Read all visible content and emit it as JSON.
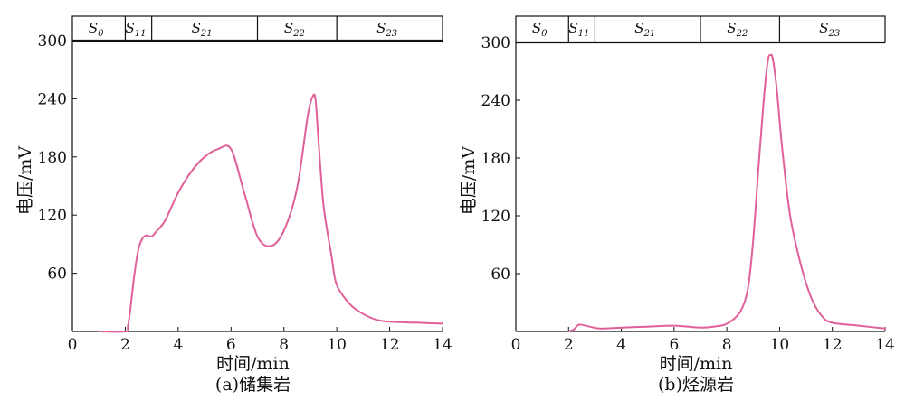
{
  "colors": {
    "curve": "#e0609a",
    "axis": "#111111",
    "background": "#ffffff"
  },
  "chart_data": [
    {
      "type": "line",
      "caption": "(a)储集岩",
      "xlabel": "时间/min",
      "ylabel": "电压/mV",
      "xlim": [
        0,
        14
      ],
      "ylim": [
        0,
        300
      ],
      "xticks": [
        0,
        2,
        4,
        6,
        8,
        10,
        12,
        14
      ],
      "yticks": [
        60,
        120,
        180,
        240,
        300
      ],
      "grid": false,
      "zones": [
        {
          "base": "S",
          "sub": "0",
          "start": 0,
          "end": 2
        },
        {
          "base": "S",
          "sub": "11",
          "start": 2,
          "end": 3
        },
        {
          "base": "S",
          "sub": "21",
          "start": 3,
          "end": 7
        },
        {
          "base": "S",
          "sub": "22",
          "start": 7,
          "end": 10
        },
        {
          "base": "S",
          "sub": "23",
          "start": 10,
          "end": 14
        }
      ],
      "series": [
        {
          "x": [
            1.0,
            2.0,
            2.1,
            2.2,
            2.35,
            2.5,
            2.65,
            2.8,
            3.0,
            3.2,
            3.5,
            4.0,
            4.5,
            5.0,
            5.5,
            6.0,
            6.5,
            7.0,
            7.5,
            8.0,
            8.5,
            8.9,
            9.1,
            9.2,
            9.3,
            9.5,
            9.8,
            10.0,
            10.5,
            11.0,
            11.5,
            12.0,
            13.0,
            14.0
          ],
          "y": [
            0,
            0,
            5,
            25,
            60,
            85,
            96,
            99,
            98,
            104,
            114,
            143,
            165,
            180,
            188,
            188,
            143,
            98,
            88,
            104,
            148,
            222,
            243,
            238,
            200,
            130,
            78,
            48,
            28,
            18,
            12,
            10,
            9,
            8
          ]
        }
      ]
    },
    {
      "type": "line",
      "caption": "(b)烃源岩",
      "xlabel": "时间/min",
      "ylabel": "电压/mV",
      "xlim": [
        0,
        14
      ],
      "ylim": [
        0,
        300
      ],
      "xticks": [
        0,
        2,
        4,
        6,
        8,
        10,
        12,
        14
      ],
      "yticks": [
        60,
        120,
        180,
        240,
        300
      ],
      "grid": false,
      "zones": [
        {
          "base": "S",
          "sub": "0",
          "start": 0,
          "end": 2
        },
        {
          "base": "S",
          "sub": "11",
          "start": 2,
          "end": 3
        },
        {
          "base": "S",
          "sub": "21",
          "start": 3,
          "end": 7
        },
        {
          "base": "S",
          "sub": "22",
          "start": 7,
          "end": 10
        },
        {
          "base": "S",
          "sub": "23",
          "start": 10,
          "end": 14
        }
      ],
      "series": [
        {
          "x": [
            2.0,
            2.2,
            2.4,
            2.8,
            3.2,
            4.0,
            5.0,
            6.0,
            7.0,
            7.5,
            8.0,
            8.5,
            8.8,
            9.0,
            9.2,
            9.4,
            9.55,
            9.65,
            9.75,
            9.9,
            10.1,
            10.4,
            10.8,
            11.2,
            11.6,
            12.0,
            13.0,
            14.0
          ],
          "y": [
            0,
            2,
            7,
            5,
            3,
            4,
            5,
            6,
            4,
            5,
            8,
            20,
            45,
            95,
            170,
            240,
            280,
            287,
            282,
            250,
            190,
            120,
            70,
            35,
            16,
            9,
            6,
            3
          ]
        }
      ]
    }
  ]
}
